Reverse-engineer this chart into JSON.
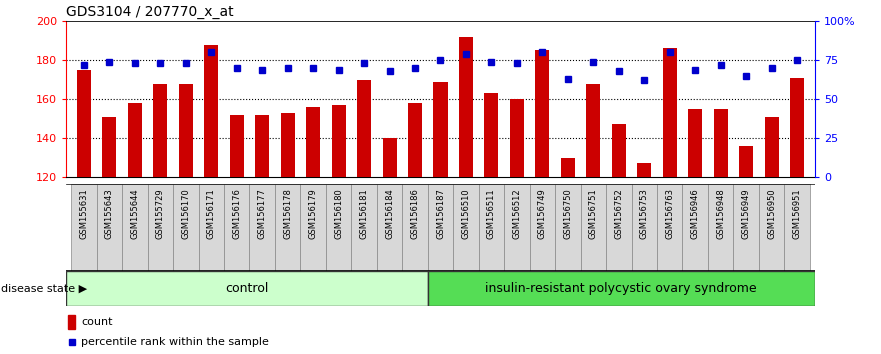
{
  "title": "GDS3104 / 207770_x_at",
  "samples": [
    "GSM155631",
    "GSM155643",
    "GSM155644",
    "GSM155729",
    "GSM156170",
    "GSM156171",
    "GSM156176",
    "GSM156177",
    "GSM156178",
    "GSM156179",
    "GSM156180",
    "GSM156181",
    "GSM156184",
    "GSM156186",
    "GSM156187",
    "GSM156510",
    "GSM156511",
    "GSM156512",
    "GSM156749",
    "GSM156750",
    "GSM156751",
    "GSM156752",
    "GSM156753",
    "GSM156763",
    "GSM156946",
    "GSM156948",
    "GSM156949",
    "GSM156950",
    "GSM156951"
  ],
  "bar_values": [
    175,
    151,
    158,
    168,
    168,
    188,
    152,
    152,
    153,
    156,
    157,
    170,
    140,
    158,
    169,
    192,
    163,
    160,
    185,
    130,
    168,
    147,
    127,
    186,
    155,
    155,
    136,
    151,
    171
  ],
  "percentile_values": [
    72,
    74,
    73,
    73,
    73,
    80,
    70,
    69,
    70,
    70,
    69,
    73,
    68,
    70,
    75,
    79,
    74,
    73,
    80,
    63,
    74,
    68,
    62,
    80,
    69,
    72,
    65,
    70,
    75
  ],
  "control_count": 14,
  "disease_count": 15,
  "ylim_left": [
    120,
    200
  ],
  "ylim_right": [
    0,
    100
  ],
  "yticks_left": [
    120,
    140,
    160,
    180,
    200
  ],
  "yticks_right": [
    0,
    25,
    50,
    75,
    100
  ],
  "bar_color": "#cc0000",
  "dot_color": "#0000cc",
  "control_label": "control",
  "disease_label": "insulin-resistant polycystic ovary syndrome",
  "control_bg": "#ccffcc",
  "disease_bg": "#55dd55",
  "group_label": "disease state",
  "legend_count_label": "count",
  "legend_pct_label": "percentile rank within the sample",
  "dotted_lines": [
    140,
    160,
    180
  ],
  "xtick_bg": "#dddddd"
}
